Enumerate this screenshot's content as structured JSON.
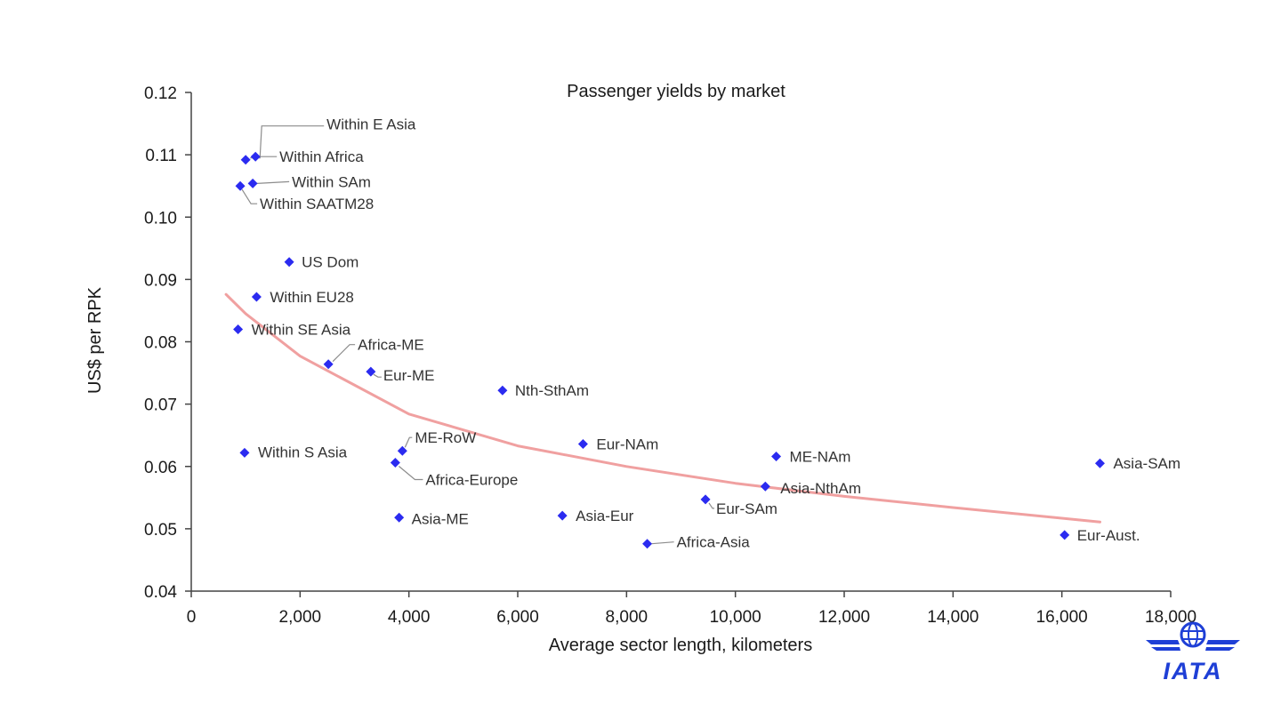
{
  "chart_data": {
    "type": "scatter",
    "title": "Passenger  yields by market",
    "xlabel": "Average sector length, kilometers",
    "ylabel": "US$ per RPK",
    "xlim": [
      0,
      18000
    ],
    "ylim": [
      0.04,
      0.12
    ],
    "xticks": [
      0,
      2000,
      4000,
      6000,
      8000,
      10000,
      12000,
      14000,
      16000,
      18000
    ],
    "xtick_labels": [
      "0",
      "2,000",
      "4,000",
      "6,000",
      "8,000",
      "10,000",
      "12,000",
      "14,000",
      "16,000",
      "18,000"
    ],
    "yticks": [
      0.04,
      0.05,
      0.06,
      0.07,
      0.08,
      0.09,
      0.1,
      0.11,
      0.12
    ],
    "ytick_labels": [
      "0.04",
      "0.05",
      "0.06",
      "0.07",
      "0.08",
      "0.09",
      "0.10",
      "0.11",
      "0.12"
    ],
    "grid": false,
    "legend": "none",
    "marker_color": "#2b2bf0",
    "trendline_color": "#f0a0a0",
    "points": [
      {
        "label": "Within E Asia",
        "x": 1000,
        "y": 0.1092
      },
      {
        "label": "Within Africa",
        "x": 1180,
        "y": 0.1097
      },
      {
        "label": "Within SAm",
        "x": 1130,
        "y": 0.1054
      },
      {
        "label": "Within SAATM28",
        "x": 900,
        "y": 0.105
      },
      {
        "label": "US Dom",
        "x": 1800,
        "y": 0.0928
      },
      {
        "label": "Within EU28",
        "x": 1200,
        "y": 0.0872
      },
      {
        "label": "Within SE Asia",
        "x": 860,
        "y": 0.082
      },
      {
        "label": "Africa-ME",
        "x": 2520,
        "y": 0.0764
      },
      {
        "label": "Eur-ME",
        "x": 3300,
        "y": 0.0752
      },
      {
        "label": "Nth-SthAm",
        "x": 5720,
        "y": 0.0722
      },
      {
        "label": "Within S Asia",
        "x": 980,
        "y": 0.0622
      },
      {
        "label": "ME-RoW",
        "x": 3880,
        "y": 0.0625
      },
      {
        "label": "Africa-Europe",
        "x": 3750,
        "y": 0.0606
      },
      {
        "label": "Eur-NAm",
        "x": 7200,
        "y": 0.0636
      },
      {
        "label": "ME-NAm",
        "x": 10750,
        "y": 0.0616
      },
      {
        "label": "Asia-SAm",
        "x": 16700,
        "y": 0.0605
      },
      {
        "label": "Asia-NthAm",
        "x": 10550,
        "y": 0.0568
      },
      {
        "label": "Eur-SAm",
        "x": 9450,
        "y": 0.0547
      },
      {
        "label": "Asia-ME",
        "x": 3820,
        "y": 0.0518
      },
      {
        "label": "Asia-Eur",
        "x": 6820,
        "y": 0.0521
      },
      {
        "label": "Africa-Asia",
        "x": 8380,
        "y": 0.0476
      },
      {
        "label": "Eur-Aust.",
        "x": 16050,
        "y": 0.049
      }
    ],
    "trendline": {
      "type": "power",
      "x": [
        640,
        1000,
        2000,
        4000,
        6000,
        8000,
        10000,
        12000,
        14000,
        16000,
        16700
      ],
      "y": [
        0.0876,
        0.0845,
        0.0777,
        0.0684,
        0.0633,
        0.06,
        0.0573,
        0.0552,
        0.0534,
        0.0517,
        0.0511
      ]
    }
  },
  "logo": {
    "text": "IATA",
    "color": "#1e3fd6"
  }
}
